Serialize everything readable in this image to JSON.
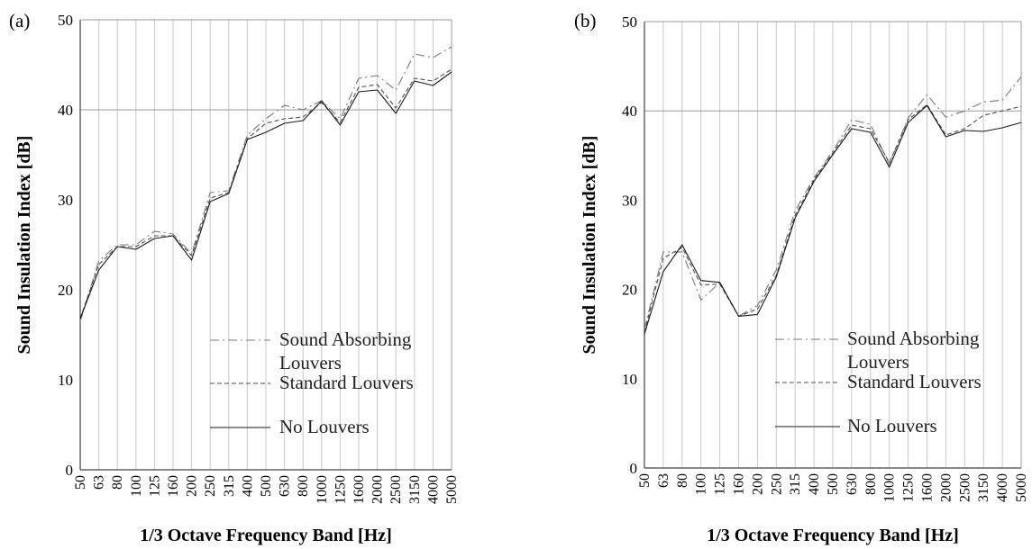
{
  "chart_data": [
    {
      "type": "line",
      "panel_label": "(a)",
      "xlabel": "1/3 Octave Frequency Band [Hz]",
      "ylabel": "Sound Insulation Index [dB]",
      "categories": [
        "50",
        "63",
        "80",
        "100",
        "125",
        "160",
        "200",
        "250",
        "315",
        "400",
        "500",
        "630",
        "800",
        "1000",
        "1250",
        "1600",
        "2000",
        "2500",
        "3150",
        "4000",
        "5000"
      ],
      "ylim": [
        0,
        50
      ],
      "yticks": [
        "0",
        "10",
        "20",
        "30",
        "40",
        "50"
      ],
      "grid": "vertical gridlines at each band, horizontal line at 40",
      "legend_position": "lower-right",
      "series": [
        {
          "name": "Sound Absorbing Louvers",
          "style": "dash-dot",
          "values": [
            16.5,
            23.2,
            25.0,
            25.0,
            26.5,
            26.2,
            24.0,
            30.8,
            31.0,
            37.2,
            39.0,
            40.5,
            40.0,
            41.0,
            39.0,
            43.5,
            43.8,
            42.2,
            46.2,
            45.8,
            47.0
          ]
        },
        {
          "name": "Standard Louvers",
          "style": "dashed",
          "values": [
            16.8,
            22.8,
            24.8,
            24.8,
            26.0,
            26.0,
            23.8,
            30.2,
            30.8,
            36.8,
            38.5,
            39.0,
            39.2,
            40.8,
            38.6,
            42.5,
            42.8,
            40.2,
            43.5,
            43.2,
            44.5
          ]
        },
        {
          "name": "No Louvers",
          "style": "solid",
          "values": [
            16.8,
            22.2,
            24.8,
            24.5,
            25.7,
            26.0,
            23.3,
            29.8,
            30.7,
            36.7,
            37.5,
            38.5,
            38.8,
            41.0,
            38.3,
            42.0,
            42.2,
            39.6,
            43.2,
            42.7,
            44.2
          ]
        }
      ]
    },
    {
      "type": "line",
      "panel_label": "(b)",
      "xlabel": "1/3 Octave Frequency Band [Hz]",
      "ylabel": "Sound Insulation Index [dB]",
      "categories": [
        "50",
        "63",
        "80",
        "100",
        "125",
        "160",
        "200",
        "250",
        "315",
        "400",
        "500",
        "630",
        "800",
        "1000",
        "1250",
        "1600",
        "2000",
        "2500",
        "3150",
        "4000",
        "5000"
      ],
      "ylim": [
        0,
        50
      ],
      "yticks": [
        "0",
        "10",
        "20",
        "30",
        "40",
        "50"
      ],
      "grid": "vertical gridlines at each band, horizontal line at 40",
      "legend_position": "lower-right",
      "series": [
        {
          "name": "Sound Absorbing Louvers",
          "style": "dash-dot",
          "values": [
            15.5,
            24.2,
            24.2,
            18.8,
            20.8,
            17.0,
            18.2,
            22.2,
            28.8,
            32.5,
            35.5,
            39.0,
            38.5,
            34.0,
            39.2,
            41.8,
            39.3,
            40.0,
            41.0,
            41.2,
            43.8
          ]
        },
        {
          "name": "Standard Louvers",
          "style": "dashed",
          "values": [
            15.2,
            23.5,
            24.7,
            20.5,
            20.6,
            17.0,
            17.8,
            21.6,
            28.3,
            32.3,
            35.3,
            38.4,
            38.0,
            34.2,
            39.0,
            40.7,
            37.3,
            38.0,
            39.5,
            40.0,
            40.5
          ]
        },
        {
          "name": "No Louvers",
          "style": "solid",
          "values": [
            15.0,
            22.0,
            25.0,
            21.0,
            20.8,
            17.0,
            17.2,
            21.4,
            28.0,
            32.1,
            35.1,
            38.0,
            37.6,
            33.7,
            38.7,
            40.6,
            37.1,
            37.8,
            37.7,
            38.1,
            38.7
          ]
        }
      ]
    }
  ]
}
